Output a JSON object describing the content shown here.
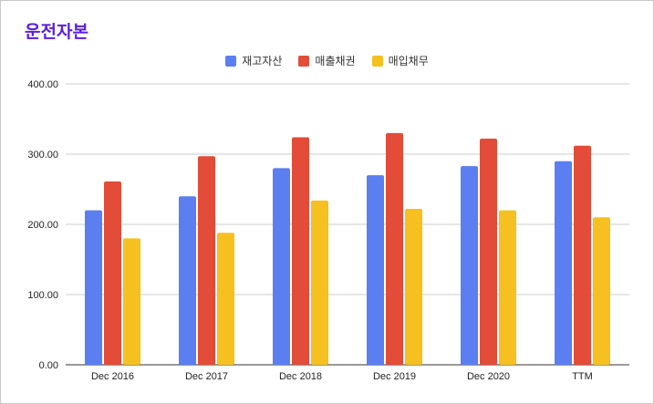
{
  "chart_data": {
    "type": "bar",
    "title": "운전자본",
    "categories": [
      "Dec 2016",
      "Dec 2017",
      "Dec 2018",
      "Dec 2019",
      "Dec 2020",
      "TTM"
    ],
    "series": [
      {
        "name": "재고자산",
        "color": "#5b7ff0",
        "values": [
          220,
          240,
          280,
          270,
          283,
          290
        ]
      },
      {
        "name": "매출채권",
        "color": "#e34c38",
        "values": [
          261,
          297,
          324,
          330,
          322,
          312
        ]
      },
      {
        "name": "매입채무",
        "color": "#f5c020",
        "values": [
          180,
          188,
          234,
          222,
          220,
          210
        ]
      }
    ],
    "ylim": [
      0,
      400
    ],
    "yticks": [
      "0.00",
      "100.00",
      "200.00",
      "300.00",
      "400.00"
    ],
    "ytick_values": [
      0,
      100,
      200,
      300,
      400
    ],
    "grid": true,
    "legend_position": "top-center"
  }
}
